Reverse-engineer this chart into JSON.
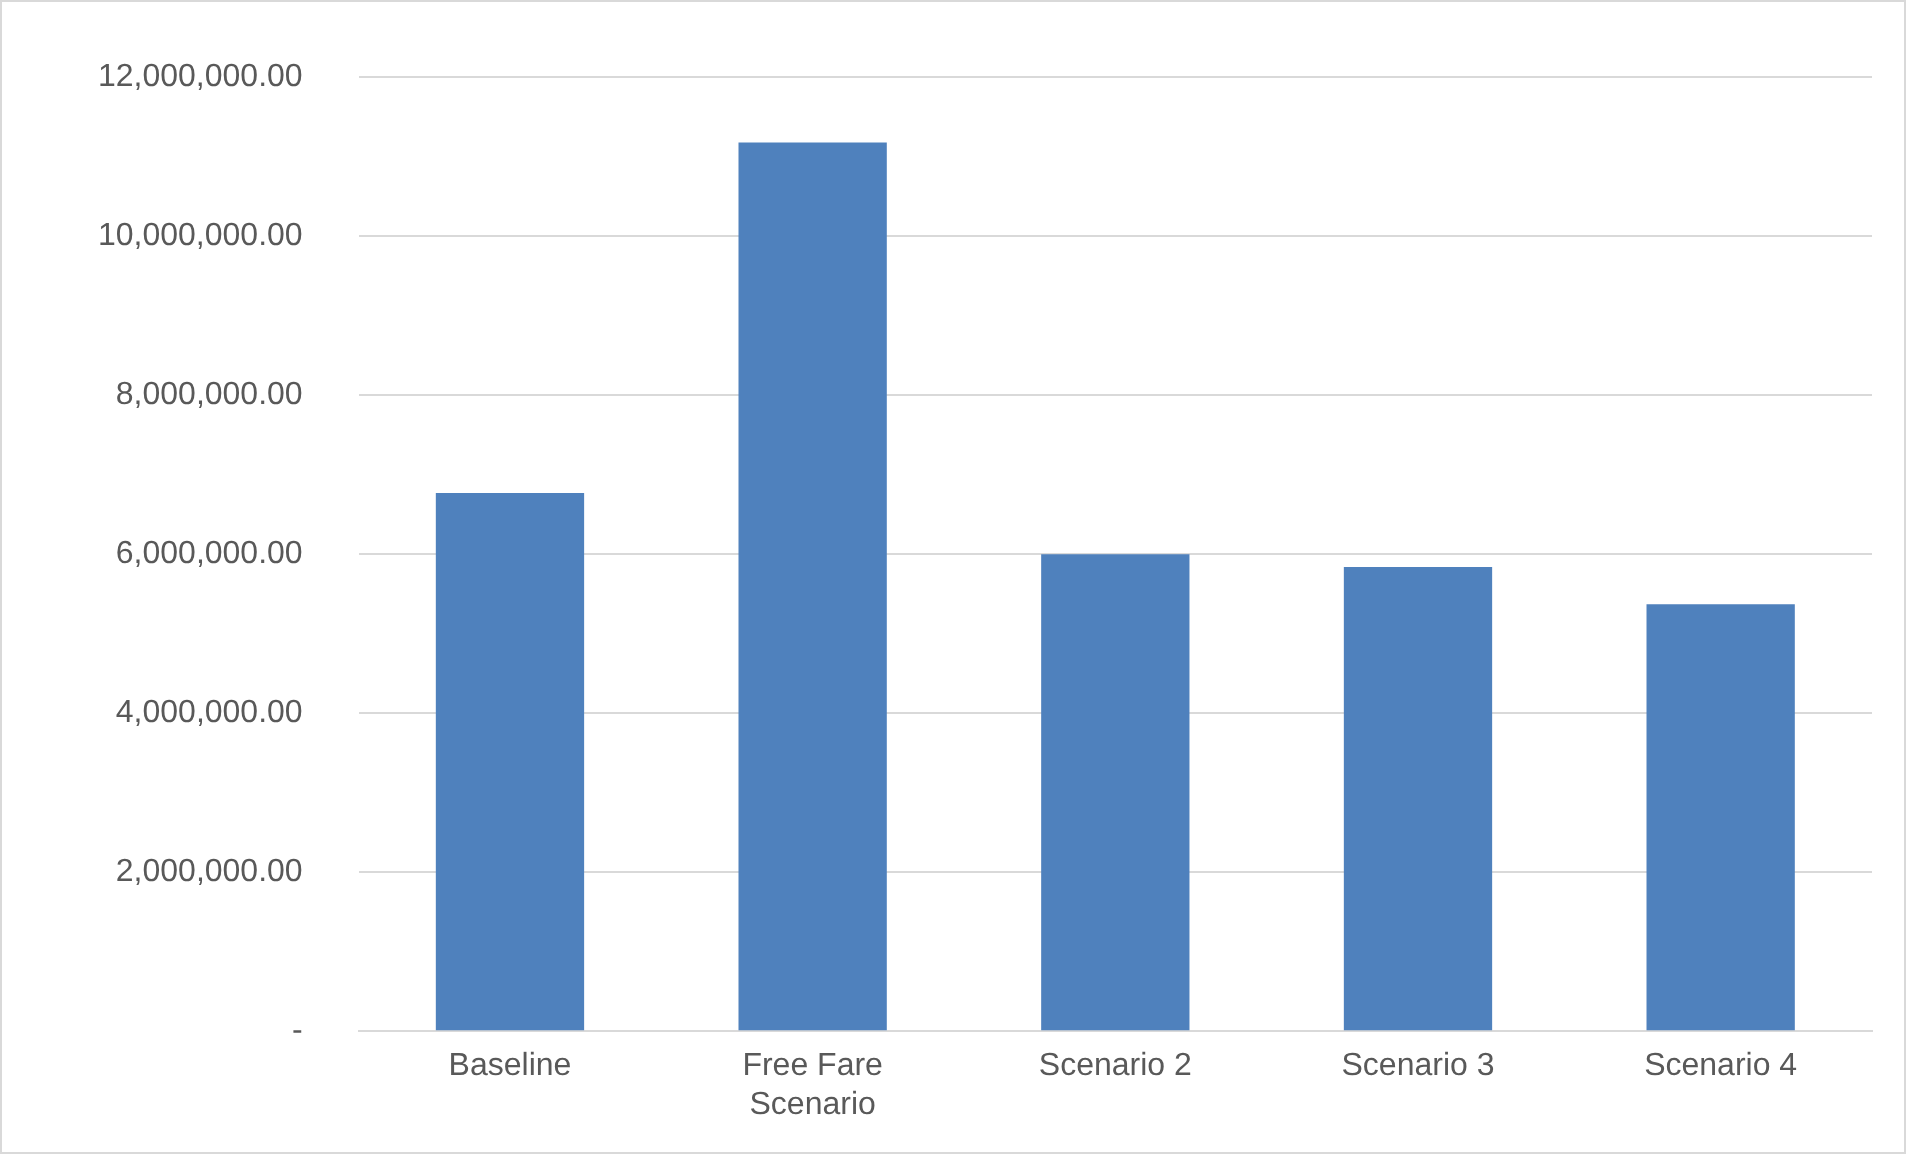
{
  "chart_data": {
    "type": "bar",
    "categories": [
      "Baseline",
      "Free Fare Scenario",
      "Scenario 2",
      "Scenario 3",
      "Scenario 4"
    ],
    "values": [
      6770000,
      11180000,
      6000000,
      5840000,
      5370000
    ],
    "color": "#4f81bd",
    "ylim": [
      0,
      12000000
    ],
    "yticks": [
      {
        "value": 0,
        "label": "-"
      },
      {
        "value": 2000000,
        "label": "2,000,000.00"
      },
      {
        "value": 4000000,
        "label": "4,000,000.00"
      },
      {
        "value": 6000000,
        "label": "6,000,000.00"
      },
      {
        "value": 8000000,
        "label": "8,000,000.00"
      },
      {
        "value": 10000000,
        "label": "10,000,000.00"
      },
      {
        "value": 12000000,
        "label": "12,000,000.00"
      }
    ],
    "grid": "y"
  }
}
